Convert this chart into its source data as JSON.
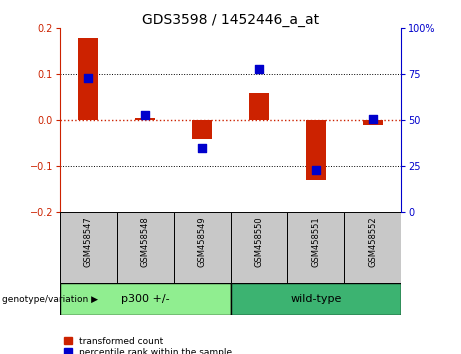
{
  "title": "GDS3598 / 1452446_a_at",
  "samples": [
    "GSM458547",
    "GSM458548",
    "GSM458549",
    "GSM458550",
    "GSM458551",
    "GSM458552"
  ],
  "transformed_count": [
    0.18,
    0.005,
    -0.04,
    0.06,
    -0.13,
    -0.01
  ],
  "percentile_rank_raw": [
    73,
    53,
    35,
    78,
    23,
    51
  ],
  "ylim_left": [
    -0.2,
    0.2
  ],
  "ylim_right": [
    0,
    100
  ],
  "yticks_left": [
    -0.2,
    -0.1,
    0.0,
    0.1,
    0.2
  ],
  "yticks_right": [
    0,
    25,
    50,
    75,
    100
  ],
  "groups": [
    {
      "label": "p300 +/-",
      "indices": [
        0,
        1,
        2
      ],
      "color": "#90EE90"
    },
    {
      "label": "wild-type",
      "indices": [
        3,
        4,
        5
      ],
      "color": "#3CB371"
    }
  ],
  "group_label_prefix": "genotype/variation",
  "bar_color": "#CC2200",
  "dot_color": "#0000CC",
  "bar_width": 0.35,
  "dot_size": 28,
  "zero_line_color": "#CC2200",
  "grid_color": "black",
  "bg_color": "white",
  "left_axis_color": "#CC2200",
  "right_axis_color": "#0000CC",
  "sample_box_color": "#C8C8C8",
  "legend_labels": [
    "transformed count",
    "percentile rank within the sample"
  ],
  "title_fontsize": 10,
  "tick_fontsize": 7,
  "label_fontsize": 7,
  "sample_fontsize": 6,
  "group_fontsize": 8
}
